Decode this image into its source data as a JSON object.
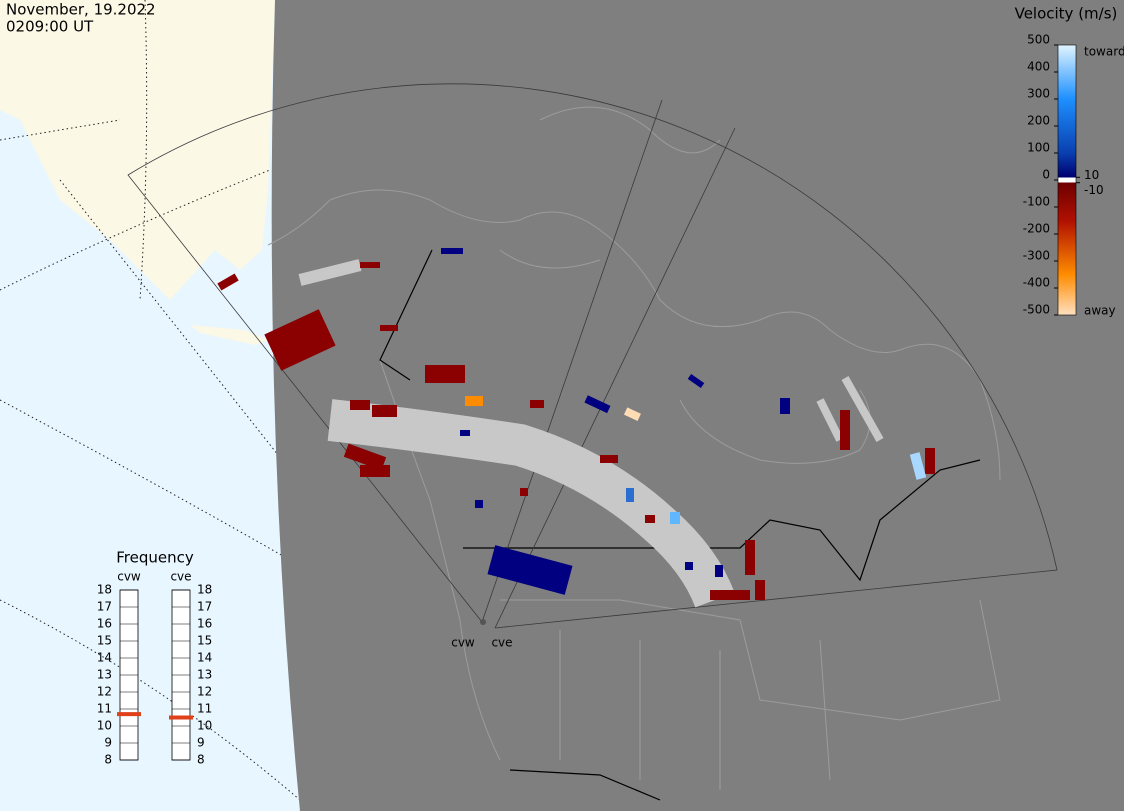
{
  "header": {
    "date": "November, 19.2022",
    "time": "0209:00 UT"
  },
  "velocity_scale": {
    "title": "Velocity (m/s)",
    "range": [
      -500,
      500
    ],
    "ticks": [
      500,
      400,
      300,
      200,
      100,
      0,
      -100,
      -200,
      -300,
      -400,
      -500
    ],
    "threshold_ticks": [
      10,
      -10
    ],
    "toward": "toward",
    "away": "away"
  },
  "frequency": {
    "title": "Frequency",
    "range": [
      8,
      18
    ],
    "ticks": [
      8,
      9,
      10,
      11,
      12,
      13,
      14,
      15,
      16,
      17,
      18
    ],
    "radars": [
      {
        "name": "cvw",
        "value": 10.7
      },
      {
        "name": "cve",
        "value": 10.5
      }
    ]
  },
  "radar_sites": [
    "cvw",
    "cve"
  ]
}
